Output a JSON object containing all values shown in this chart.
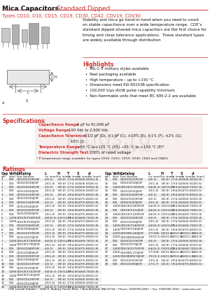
{
  "title_black": "Mica Capacitors",
  "title_red": " Standard Dipped",
  "subtitle": "Types CD10, D10, CD15, CD19, CD30, CD42, CDV19, CDV30",
  "description_lines": [
    "Stability and mica go hand-in-hand when you need to count",
    "on stable capacitance over a wide temperature range.  CDE’s",
    "standard dipped silvered mica capacitors are the first choice for",
    "timing and close tolerance applications.  These standard types",
    "are widely available through distribution"
  ],
  "highlights_title": "Highlights",
  "highlights": [
    "MIL-C-5 military styles available",
    "Reel packaging available",
    "High temperature – up to +150 °C",
    "Dimensions meet EIA RS153B specification",
    "100,000 V/μs dV/dt pulse capability minimum",
    "Non-flammable units that meet IEC 695-2-2 are available"
  ],
  "specs_title": "Specifications",
  "spec_lines": [
    [
      "Capacitance Range:",
      "1 pF to 91,000 pF"
    ],
    [
      "Voltage Range:",
      "100 Vdc to 2,500 Vdc"
    ],
    [
      "Capacitance Tolerance:",
      "±1/2 pF (D), ±1 pF (C), ±10% (E), ±1% (F), ±2% (G),"
    ],
    [
      "",
      "±5% (J)"
    ],
    [
      "Temperature Range:",
      "−55 °C to+125 °C (X5) −55 °C to +150 °C (P)*"
    ],
    [
      "Dielectric Strength Test:",
      "200% of rated voltage"
    ]
  ],
  "spec_note": "* P temperature range available for types CD10, CD15, CD19, CD30, CD42 and CDA15",
  "ratings_title": "Ratings",
  "col_headers": [
    "Cap",
    "Volts",
    "Catalog",
    "L",
    "H",
    "T",
    "S",
    "d"
  ],
  "col_subheaders": [
    "(pF)",
    "(Vdc)",
    "Part Number",
    "(in (mm))",
    "(in (mm))",
    "(in (mm))",
    "(in (mm))",
    "(in (mm))"
  ],
  "col_x_left": [
    2,
    13,
    24,
    64,
    82,
    96,
    110,
    126
  ],
  "col_x_right": [
    150,
    161,
    172,
    212,
    230,
    244,
    258,
    274
  ],
  "table_left": [
    [
      "1",
      "500",
      "CD10CD010F03F",
      ".63(.5)",
      ".30(.8)",
      ".17(4.3)",
      ".256(6.5)",
      ".032(.8)"
    ],
    [
      "1",
      "500",
      "CD10CD010J03F",
      ".25(1.4)",
      ".30(.8)",
      ".17(4.3)",
      ".256(6.5)",
      ".025(.6)"
    ],
    [
      "2",
      "500",
      "CD10CD020F03F",
      ".63(.5)",
      ".30(.8)",
      ".17(4.3)",
      ".256(6.5)",
      ".032(.8)"
    ],
    [
      "2",
      "500",
      "CD15CD020J03F",
      ".25(1.4)",
      ".30(.8)",
      ".17(4.3)",
      ".256(6.5)",
      ".025(.6)"
    ],
    [
      "3",
      "500",
      "CD10CD030F03F",
      ".63(.5)",
      ".30(.8)",
      ".19(4.8)",
      ".347(5.8)",
      ".032(.8)"
    ],
    [
      "3",
      "500",
      "CD15CD030J03F",
      ".25(1.4)",
      ".30(.8)",
      ".19(4.8)",
      ".347(5.8)",
      ".025(.6)"
    ],
    [
      "4",
      "500",
      "CD10CD040F03F",
      ".63(.5)",
      ".30(.8)",
      ".19(4.8)",
      ".347(5.8)",
      ".032(.8)"
    ],
    [
      "4",
      "500",
      "CD15CD040J03F",
      ".25(1.4)",
      ".30(.8)",
      ".19(4.8)",
      ".347(5.8)",
      ".025(.6)"
    ],
    [
      "5",
      "500",
      "CD10CD050F03F",
      ".63(.5)",
      ".30(.8)",
      ".19(4.8)",
      ".347(5.8)",
      ".032(.8)"
    ],
    [
      "5",
      "500",
      "CD15CD050J03F",
      ".25(1.4)",
      ".30(.8)",
      ".19(4.8)",
      ".347(5.8)",
      ".025(.6)"
    ],
    [
      "5",
      "1,000",
      "CDV19CF560F03F",
      ".64(16.3)",
      ".150(12.7)",
      ".19(4.8)",
      ".344(8.7)",
      ".032(.8)"
    ],
    [
      "5",
      "1,000",
      "CDV19CF560J03F",
      ".25(1.4)",
      ".30(.8)",
      ".19(4.8)",
      ".347(5.8)",
      ".025(.6)"
    ],
    [
      "6",
      "500",
      "CD10CD060F03F",
      ".63(.5)",
      ".30(.8)",
      ".17(4.3)",
      ".256(6.5)",
      ".032(.8)"
    ],
    [
      "6",
      "500",
      "CD15CD060J03F",
      ".25(1.4)",
      ".30(.8)",
      ".17(4.3)",
      ".256(6.5)",
      ".025(.6)"
    ],
    [
      "7",
      "500",
      "CD10CD070F03F",
      ".25(1.4)",
      ".30(.8)",
      ".19(4.8)",
      ".347(5.8)",
      ".025(.6)"
    ],
    [
      "7",
      "500",
      "CD15CD070J03F",
      ".25(1.4)",
      ".30(.8)",
      ".19(4.8)",
      ".347(5.8)",
      ".025(.6)"
    ],
    [
      "7",
      "1,000",
      "CDV19CF700F03F",
      ".64(16.3)",
      ".150(12.7)",
      ".19(4.8)",
      ".344(8.7)",
      ".032(.8)"
    ],
    [
      "7",
      "1,000",
      "CDV19CF700J03F",
      ".25(1.4)",
      ".30(.8)",
      ".19(4.8)",
      ".347(5.8)",
      ".025(.6)"
    ],
    [
      "8",
      "500",
      "CD10CD080F03F",
      ".63(.5)",
      ".30(.8)",
      ".19(4.8)",
      ".347(5.8)",
      ".032(.8)"
    ],
    [
      "8",
      "500",
      "CD15CD080J03F",
      ".25(1.4)",
      ".30(.8)",
      ".19(4.8)",
      ".347(5.8)",
      ".025(.6)"
    ],
    [
      "9",
      "500",
      "CD10CD090F03F",
      ".25(1.4)",
      ".30(.8)",
      ".19(4.8)",
      ".347(5.8)",
      ".025(.6)"
    ],
    [
      "9",
      "500",
      "CD15CD090J03F",
      ".25(1.4)",
      ".30(.8)",
      ".19(4.8)",
      ".347(5.8)",
      ".025(.6)"
    ],
    [
      "10",
      "500",
      "CD10CD100F03F",
      ".63(.5)",
      ".30(.8)",
      ".19(4.8)",
      ".347(5.8)",
      ".032(.8)"
    ],
    [
      "10",
      "500",
      "CD15CD100J03F",
      ".25(1.4)",
      ".30(.8)",
      ".19(4.8)",
      ".347(5.8)",
      ".025(.6)"
    ],
    [
      "10",
      "1,000",
      "CDV19CF101F03F",
      ".64(16.3)",
      ".150(12.7)",
      ".19(4.8)",
      ".344(8.7)",
      ".032(.8)"
    ],
    [
      "10",
      "1,000",
      "CDV19CF101J03F",
      ".25(1.4)",
      ".30(.8)",
      ".19(4.8)",
      ".347(5.8)",
      ".025(.6)"
    ],
    [
      "12",
      "500",
      "CD10CD120F03F",
      ".63(.5)",
      ".30(.8)",
      ".17(4.3)",
      ".256(6.5)",
      ".032(.8)"
    ],
    [
      "12",
      "500",
      "CD15CD120J03F",
      ".25(1.4)",
      ".30(.8)",
      ".17(4.3)",
      ".256(6.5)",
      ".025(.6)"
    ],
    [
      "12",
      "1,000",
      "CDV19CF120F03F",
      ".64(16.3)",
      ".150(12.7)",
      ".19(4.8)",
      ".344(8.7)",
      ".032(.8)"
    ]
  ],
  "table_right": [
    [
      "15",
      "500",
      "CD10CD150F03F",
      ".63(.5)",
      ".30(.8)",
      ".17(4.3)",
      ".256(6.5)",
      ".032(.8)"
    ],
    [
      "15",
      "500",
      "CD10CD150J03F",
      ".25(1.4)",
      ".30(.8)",
      ".17(4.3)",
      ".256(6.5)",
      ".025(.6)"
    ],
    [
      "15",
      "1,000",
      "CDV19CF150F03F",
      ".64(16.3)",
      ".150(12.7)",
      ".19(4.8)",
      ".344(8.7)",
      ".032(.8)"
    ],
    [
      "15",
      "500",
      "CD15CD150J03F",
      ".25(1.4)",
      ".30(.8)",
      ".19(4.8)",
      ".347(5.8)",
      ".025(.6)"
    ],
    [
      "18",
      "500",
      "CD10CD180F03F",
      ".63(.5)",
      ".30(.8)",
      ".19(4.8)",
      ".347(5.8)",
      ".032(.8)"
    ],
    [
      "20",
      "500",
      "CD10CD200F03F",
      ".63(.5)",
      ".30(.8)",
      ".17(4.3)",
      ".256(6.5)",
      ".032(.8)"
    ],
    [
      "20",
      "500",
      "CD10CD200J03F",
      ".25(1.4)",
      ".30(.8)",
      ".17(4.3)",
      ".256(6.5)",
      ".025(.6)"
    ],
    [
      "20",
      "1,000",
      "CDV19CF200F03F",
      ".64(16.3)",
      ".150(12.7)",
      ".19(4.8)",
      ".344(8.7)",
      ".032(.8)"
    ],
    [
      "22",
      "500",
      "CDV19CF221J03F",
      ".64(16.3)",
      ".150(12.7)",
      ".19(4.8)",
      ".344(8.7)",
      ".025(.6)"
    ],
    [
      "22",
      "1,000",
      "CDV19CF220F03F",
      ".64(16.3)",
      ".150(12.7)",
      ".19(4.8)",
      ".344(8.7)",
      ".032(.8)"
    ],
    [
      "24",
      "500",
      "CD10CD240F03F",
      ".63(.5)",
      ".30(.8)",
      ".17(4.3)",
      ".256(6.5)",
      ".032(.8)"
    ],
    [
      "24",
      "500",
      "CD15CD240J03F",
      ".25(1.4)",
      ".30(.8)",
      ".17(4.3)",
      ".256(6.5)",
      ".025(.6)"
    ],
    [
      "24",
      "1,000",
      "CDV19CF240F03F",
      ".64(16.3)",
      ".150(12.7)",
      ".19(4.8)",
      ".344(8.7)",
      ".032(.8)"
    ],
    [
      "24",
      "1,000",
      "CDV19CF240J03F",
      ".25(1.4)",
      ".30(.8)",
      ".19(4.8)",
      ".347(5.8)",
      ".025(.6)"
    ],
    [
      "24",
      "2,500",
      "CDV30DL240J03F",
      ".17(106)",
      ".60(21.6)",
      ".125(3.4)",
      ".410(11.1)",
      ".040(.0)"
    ],
    [
      "24",
      "2,500",
      "CDV30DM240J03F",
      ".75(19.1)",
      ".60(21.6)",
      ".125(3.4)",
      ".410(11.1)",
      ".040(.0)"
    ],
    [
      "27",
      "500",
      "CD10CD270F03F",
      ".63(.5)",
      ".30(.8)",
      ".17(4.3)",
      ".256(6.5)",
      ".032(.8)"
    ],
    [
      "27",
      "500",
      "CD10CD270J03F",
      ".25(1.4)",
      ".30(.8)",
      ".17(4.3)",
      ".256(6.5)",
      ".025(.6)"
    ],
    [
      "27",
      "1,000",
      "CDV19CF270F03F",
      ".64(16.3)",
      ".150(12.7)",
      ".19(4.8)",
      ".344(8.7)",
      ".032(.8)"
    ],
    [
      "27",
      "2,500",
      "CDV30DL270J03F",
      ".17(106)",
      ".60(21.6)",
      ".125(3.4)",
      ".410(11.1)",
      ".040(.0)"
    ],
    [
      "27",
      "2,500",
      "CDV30DM270J03F",
      ".75(19.1)",
      ".60(21.6)",
      ".125(3.4)",
      ".410(11.1)",
      ".040(.0)"
    ],
    [
      "30",
      "500",
      "CD10CD300F03F",
      ".13(1.4)",
      ".34(.6)",
      ".19(4.8)",
      ".347(5.8)",
      ".025(.6)"
    ],
    [
      "30",
      "500",
      "CD15CD300J03F",
      ".17(1.7)",
      ".34(.6)",
      ".19(4.8)",
      ".347(5.8)",
      ".025(.6)"
    ]
  ],
  "footer": "CDE Cornell Dubilier • 1605 E. Rodney French Blvd. • New Bedford, MA 02744 • Phone: (508)996-8561 • Fax: (508)996-3830 • www.cde.com",
  "bg_color": "#ffffff",
  "red_color": "#cc3333",
  "black_color": "#111111",
  "light_red_bg": "#f0d0cc"
}
